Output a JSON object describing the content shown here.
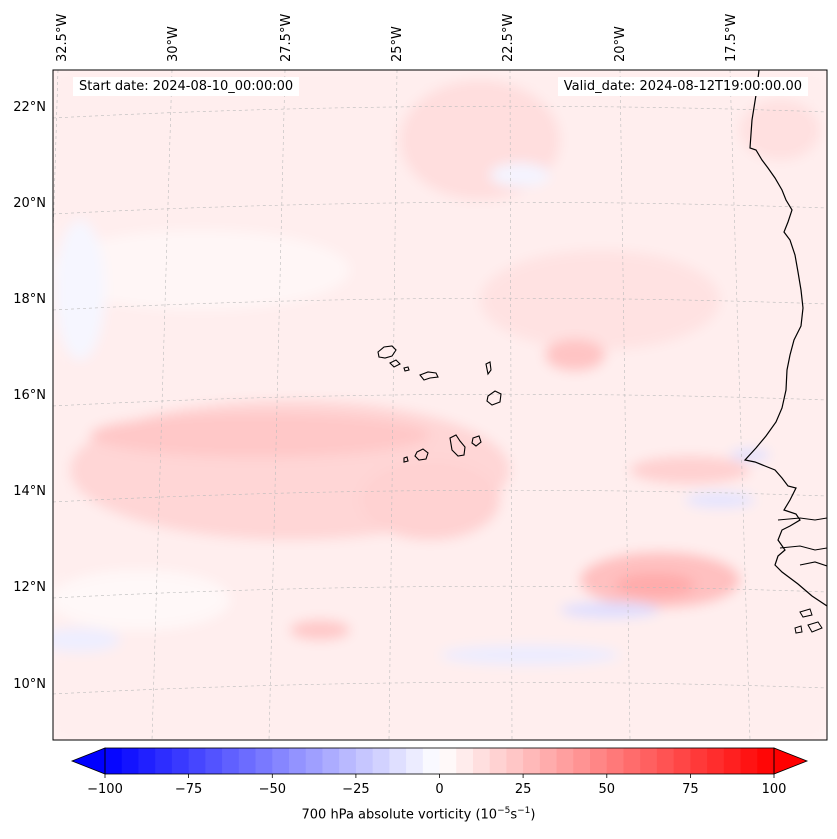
{
  "header": {
    "start_date": "Start date: 2024-08-10_00:00:00",
    "valid_date": "Valid_date: 2024-08-12T19:00:00.00"
  },
  "longitude_labels": [
    "32.5°W",
    "30°W",
    "27.5°W",
    "25°W",
    "22.5°W",
    "20°W",
    "17.5°W"
  ],
  "latitude_labels": [
    "22°N",
    "20°N",
    "18°N",
    "16°N",
    "14°N",
    "12°N",
    "10°N"
  ],
  "field": {
    "variable": "700 hPa absolute vorticity",
    "colormap": "bwr",
    "range": [
      -100,
      100
    ]
  },
  "colorbar": {
    "ticks": [
      "−100",
      "−75",
      "−50",
      "−25",
      "0",
      "25",
      "50",
      "75",
      "100"
    ],
    "label_text": "700 hPa absolute vorticity (10",
    "label_exp1": "−5",
    "label_mid": "s",
    "label_exp2": "−1",
    "label_end": ")",
    "extend": "both",
    "colors": {
      "min": "#0000ff",
      "mid": "#ffffff",
      "max": "#ff0000"
    }
  },
  "features": [
    "coastline",
    "cape-verde-islands",
    "gridlines"
  ]
}
